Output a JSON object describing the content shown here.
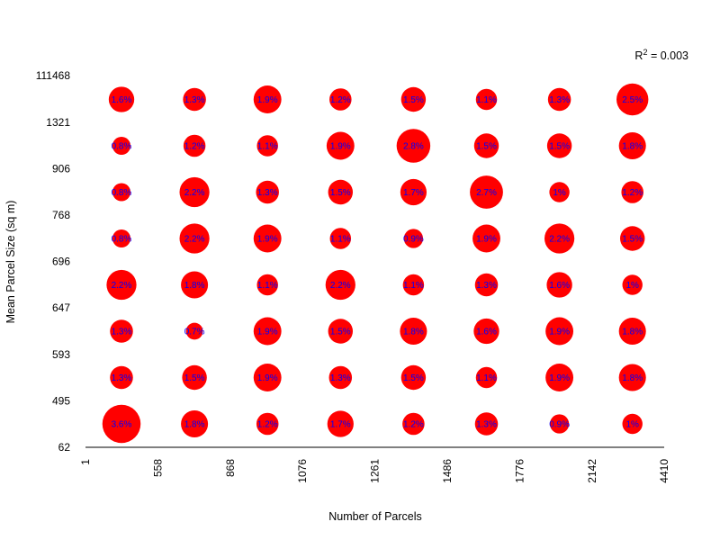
{
  "chart_data": {
    "type": "scatter",
    "xlabel": "Number of Parcels",
    "ylabel": "Mean Parcel Size (sq m)",
    "x_ticks": [
      "1",
      "558",
      "868",
      "1076",
      "1261",
      "1486",
      "1776",
      "2142",
      "4410"
    ],
    "y_ticks": [
      "62",
      "495",
      "593",
      "647",
      "696",
      "768",
      "906",
      "1321",
      "111468"
    ],
    "annotation": {
      "prefix": "R",
      "superscript": "2",
      "suffix": " = 0.003"
    },
    "x_bins": [
      "1-558",
      "558-868",
      "868-1076",
      "1076-1261",
      "1261-1486",
      "1486-1776",
      "1776-2142",
      "2142-4410"
    ],
    "y_bins": [
      "62-495",
      "495-593",
      "593-647",
      "647-696",
      "696-768",
      "768-906",
      "906-1321",
      "1321-111468"
    ],
    "grid": false,
    "colors": {
      "bubble": "#ff0000",
      "label": "#0000ff",
      "axis": "#000000"
    },
    "cells": [
      [
        3.6,
        1.8,
        1.2,
        1.7,
        1.2,
        1.3,
        0.9,
        1.0
      ],
      [
        1.3,
        1.5,
        1.9,
        1.3,
        1.5,
        1.1,
        1.9,
        1.8
      ],
      [
        1.3,
        0.7,
        1.9,
        1.5,
        1.8,
        1.6,
        1.9,
        1.8
      ],
      [
        2.2,
        1.8,
        1.1,
        2.2,
        1.1,
        1.3,
        1.6,
        1.0
      ],
      [
        0.8,
        2.2,
        1.9,
        1.1,
        0.9,
        1.9,
        2.2,
        1.5
      ],
      [
        0.8,
        2.2,
        1.3,
        1.5,
        1.7,
        2.7,
        1.0,
        1.2
      ],
      [
        0.8,
        1.2,
        1.1,
        1.9,
        2.8,
        1.5,
        1.5,
        1.8
      ],
      [
        1.6,
        1.3,
        1.9,
        1.2,
        1.5,
        1.1,
        1.3,
        2.5
      ]
    ],
    "cell_labels": [
      [
        "3.6%",
        "1.8%",
        "1.2%",
        "1.7%",
        "1.2%",
        "1.3%",
        "0.9%",
        "1%"
      ],
      [
        "1.3%",
        "1.5%",
        "1.9%",
        "1.3%",
        "1.5%",
        "1.1%",
        "1.9%",
        "1.8%"
      ],
      [
        "1.3%",
        "0.7%",
        "1.9%",
        "1.5%",
        "1.8%",
        "1.6%",
        "1.9%",
        "1.8%"
      ],
      [
        "2.2%",
        "1.8%",
        "1.1%",
        "2.2%",
        "1.1%",
        "1.3%",
        "1.6%",
        "1%"
      ],
      [
        "0.8%",
        "2.2%",
        "1.9%",
        "1.1%",
        "0.9%",
        "1.9%",
        "2.2%",
        "1.5%"
      ],
      [
        "0.8%",
        "2.2%",
        "1.3%",
        "1.5%",
        "1.7%",
        "2.7%",
        "1%",
        "1.2%"
      ],
      [
        "0.8%",
        "1.2%",
        "1.1%",
        "1.9%",
        "2.8%",
        "1.5%",
        "1.5%",
        "1.8%"
      ],
      [
        "1.6%",
        "1.3%",
        "1.9%",
        "1.2%",
        "1.5%",
        "1.1%",
        "1.3%",
        "2.5%"
      ]
    ]
  }
}
